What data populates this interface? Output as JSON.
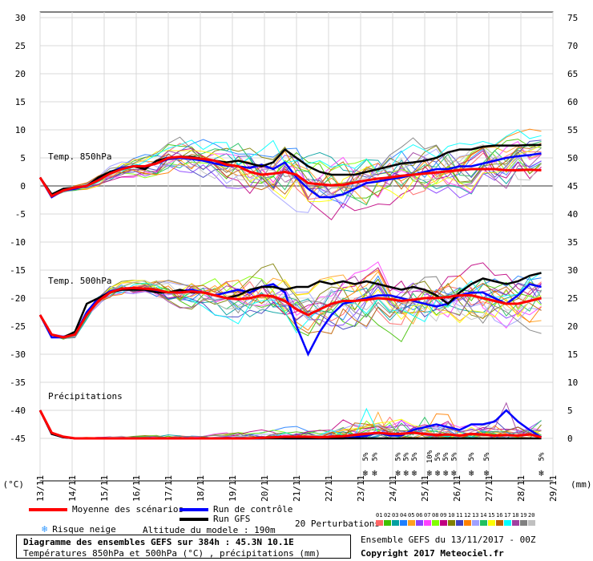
{
  "chart_data": {
    "type": "line",
    "title": "Diagramme des ensembles GEFS sur 384h : 45.3N 10.1E",
    "subtitle": "Températures 850hPa et 500hPa (°C) , précipitations (mm)",
    "x_ticks": [
      "13/11",
      "14/11",
      "15/11",
      "16/11",
      "17/11",
      "18/11",
      "19/11",
      "20/11",
      "21/11",
      "22/11",
      "23/11",
      "24/11",
      "25/11",
      "26/11",
      "27/11",
      "28/11",
      "29/11"
    ],
    "left_axis": {
      "label": "(°C)",
      "range": [
        -50,
        32
      ],
      "ticks": [
        30,
        25,
        20,
        15,
        10,
        5,
        0,
        -5,
        -10,
        -15,
        -20,
        -25,
        -30,
        -35,
        -40,
        -45
      ]
    },
    "right_axis": {
      "label": "(mm)",
      "ticks": [
        75,
        70,
        65,
        60,
        55,
        50,
        45,
        40,
        35,
        30,
        25,
        20,
        15,
        10,
        5,
        0
      ]
    },
    "sections": {
      "t850": "Temp. 850hPa",
      "t500": "Temp. 500hPa",
      "precip": "Précipitations"
    },
    "series": [
      {
        "name": "Moyenne des scénarios",
        "color": "#ff0000",
        "panel": "t850",
        "values": [
          1.5,
          -1.8,
          -0.8,
          -0.3,
          0.0,
          1.0,
          2.2,
          3.0,
          3.5,
          3.5,
          4.0,
          5.0,
          5.2,
          5.0,
          4.8,
          4.5,
          3.8,
          3.5,
          2.5,
          2.0,
          2.2,
          2.5,
          2.0,
          0.5,
          0.3,
          0.1,
          0.2,
          0.6,
          1.0,
          1.3,
          1.5,
          1.8,
          2.0,
          2.2,
          2.4,
          2.6,
          2.8,
          3.0,
          3.0,
          3.0,
          2.8,
          2.8,
          2.9,
          2.8
        ]
      },
      {
        "name": "Run de contrôle",
        "color": "#0000ff",
        "panel": "t850",
        "values": [
          1.5,
          -2.0,
          -0.8,
          -0.5,
          0.0,
          1.2,
          2.5,
          3.2,
          3.5,
          3.4,
          4.0,
          4.8,
          5.0,
          4.8,
          4.5,
          4.0,
          3.6,
          3.5,
          3.2,
          3.8,
          3.0,
          4.2,
          1.5,
          -0.5,
          -2.0,
          -2.0,
          -1.5,
          -0.5,
          0.5,
          0.8,
          1.2,
          1.5,
          2.0,
          2.5,
          3.0,
          3.0,
          3.5,
          3.5,
          4.0,
          4.5,
          5.0,
          5.3,
          5.5,
          5.8
        ]
      },
      {
        "name": "Run GFS",
        "color": "#000000",
        "panel": "t850",
        "values": [
          1.5,
          -1.5,
          -0.5,
          -0.3,
          0.0,
          1.5,
          2.5,
          3.0,
          3.5,
          3.0,
          4.5,
          5.0,
          5.2,
          5.2,
          4.8,
          4.5,
          4.2,
          4.5,
          4.0,
          3.5,
          4.2,
          6.5,
          5.0,
          3.5,
          2.5,
          2.0,
          2.0,
          2.0,
          2.5,
          3.0,
          3.5,
          4.0,
          4.2,
          4.5,
          5.0,
          6.0,
          6.5,
          6.5,
          7.0,
          7.2,
          7.2,
          7.2,
          7.3,
          7.3
        ]
      },
      {
        "name": "Moyenne des scénarios",
        "color": "#ff0000",
        "panel": "t500",
        "values": [
          -23.0,
          -26.5,
          -27.0,
          -26.5,
          -23.0,
          -20.5,
          -19.0,
          -18.3,
          -18.2,
          -18.3,
          -18.5,
          -19.0,
          -19.0,
          -18.8,
          -19.0,
          -19.5,
          -20.0,
          -20.2,
          -20.0,
          -19.5,
          -19.7,
          -20.5,
          -22.0,
          -23.0,
          -22.0,
          -21.0,
          -20.5,
          -20.5,
          -20.3,
          -20.0,
          -20.2,
          -20.5,
          -20.3,
          -20.0,
          -20.0,
          -19.8,
          -19.5,
          -19.5,
          -20.0,
          -20.5,
          -21.0,
          -21.0,
          -20.5,
          -20.0
        ]
      },
      {
        "name": "Run de contrôle",
        "color": "#0000ff",
        "panel": "t500",
        "values": [
          -23.0,
          -27.0,
          -27.0,
          -26.5,
          -22.5,
          -20.0,
          -18.8,
          -18.3,
          -18.2,
          -18.5,
          -18.8,
          -19.0,
          -18.8,
          -18.5,
          -19.0,
          -19.5,
          -19.0,
          -18.5,
          -19.0,
          -18.0,
          -17.5,
          -19.0,
          -25.0,
          -30.0,
          -26.0,
          -23.0,
          -21.0,
          -20.5,
          -20.0,
          -19.5,
          -19.5,
          -20.0,
          -20.5,
          -21.0,
          -21.5,
          -21.0,
          -19.5,
          -19.0,
          -19.0,
          -20.0,
          -21.0,
          -19.5,
          -17.5,
          -18.0
        ]
      },
      {
        "name": "Run GFS",
        "color": "#000000",
        "panel": "t500",
        "values": [
          -23.0,
          -26.5,
          -27.0,
          -26.0,
          -21.0,
          -20.0,
          -19.0,
          -18.5,
          -18.5,
          -18.5,
          -19.0,
          -19.0,
          -18.5,
          -19.0,
          -19.0,
          -19.5,
          -20.0,
          -19.5,
          -18.5,
          -18.0,
          -18.0,
          -18.5,
          -18.0,
          -18.0,
          -17.0,
          -17.5,
          -17.0,
          -17.5,
          -17.0,
          -17.5,
          -18.0,
          -18.5,
          -18.0,
          -18.5,
          -19.5,
          -21.0,
          -19.0,
          -17.5,
          -16.5,
          -17.0,
          -17.5,
          -17.0,
          -16.0,
          -15.5
        ]
      },
      {
        "name": "Moyenne des scénarios",
        "color": "#ff0000",
        "panel": "precip",
        "unit": "mm",
        "values": [
          5.0,
          1.0,
          0.3,
          0,
          0,
          0,
          0,
          0,
          0,
          0,
          0,
          0,
          0,
          0,
          0,
          0,
          0,
          0,
          0,
          0.1,
          0.2,
          0.3,
          0.3,
          0.3,
          0.2,
          0.3,
          0.4,
          0.6,
          0.8,
          1.0,
          0.8,
          0.8,
          1.0,
          0.8,
          0.6,
          0.7,
          0.5,
          0.8,
          0.7,
          0.5,
          0.6,
          0.5,
          0.7,
          0.2
        ]
      },
      {
        "name": "Run de contrôle",
        "color": "#0000ff",
        "panel": "precip",
        "unit": "mm",
        "values": [
          5.0,
          0.8,
          0.2,
          0,
          0,
          0,
          0,
          0,
          0,
          0,
          0,
          0,
          0,
          0,
          0,
          0,
          0,
          0,
          0,
          0,
          0.1,
          0,
          0,
          0,
          0,
          0,
          0,
          0.2,
          0.5,
          1.0,
          0.5,
          0.5,
          1.5,
          2.0,
          2.5,
          2.0,
          1.5,
          2.5,
          2.5,
          3.0,
          5.0,
          3.0,
          1.5,
          0.2
        ]
      },
      {
        "name": "Run GFS",
        "color": "#000000",
        "panel": "precip",
        "unit": "mm",
        "values": [
          5.0,
          0.8,
          0.2,
          0,
          0,
          0,
          0,
          0,
          0,
          0,
          0,
          0,
          0,
          0,
          0,
          0,
          0,
          0,
          0,
          0,
          0,
          0,
          0,
          0,
          0,
          0,
          0,
          0,
          0,
          0,
          0,
          0,
          0,
          0,
          0,
          0,
          0,
          0,
          0,
          0,
          0,
          0,
          0,
          0
        ]
      }
    ],
    "snow_risk": [
      {
        "x_index": 27.9,
        "label": "5%"
      },
      {
        "x_index": 28.7,
        "label": "5%"
      },
      {
        "x_index": 30.7,
        "label": "5%"
      },
      {
        "x_index": 31.4,
        "label": "5%"
      },
      {
        "x_index": 32.1,
        "label": "5%"
      },
      {
        "x_index": 33.4,
        "label": "10%"
      },
      {
        "x_index": 34.1,
        "label": "5%"
      },
      {
        "x_index": 34.8,
        "label": "5%"
      },
      {
        "x_index": 35.5,
        "label": "5%"
      },
      {
        "x_index": 37.0,
        "label": "5%"
      },
      {
        "x_index": 38.3,
        "label": "5%"
      },
      {
        "x_index": 43.0,
        "label": "5%"
      }
    ],
    "perturbation_colors": [
      "#ff6666",
      "#40c000",
      "#00a0a0",
      "#2080ff",
      "#ffa020",
      "#8a40ff",
      "#ff40ff",
      "#80ff00",
      "#c00080",
      "#808000",
      "#4040c0",
      "#ff8000",
      "#a0a0ff",
      "#20c060",
      "#ffff00",
      "#c06000",
      "#00ffff",
      "#a040a0",
      "#808080",
      "#c0c0c0"
    ]
  },
  "legend": {
    "mean": "Moyenne des scénarios",
    "control": "Run de contrôle",
    "gfs": "Run GFS",
    "snow": "Risque neige",
    "altitude": "Altitude du modele : 190m",
    "perturbations": "20 Perturbations",
    "pert_numbers": [
      "01",
      "02",
      "03",
      "04",
      "05",
      "06",
      "07",
      "08",
      "09",
      "10",
      "11",
      "12",
      "13",
      "14",
      "15",
      "16",
      "17",
      "18",
      "19",
      "20"
    ]
  },
  "footer": {
    "title": "Diagramme des ensembles GEFS sur 384h : 45.3N 10.1E",
    "subtitle": "Températures 850hPa et 500hPa (°C) , précipitations (mm)",
    "run": "Ensemble GEFS du 13/11/2017 - 00Z",
    "copyright": "Copyright 2017 Meteociel.fr"
  },
  "colors": {
    "mean": "#ff0000",
    "control": "#0000ff",
    "gfs": "#000000",
    "snow": "#3399ff"
  }
}
